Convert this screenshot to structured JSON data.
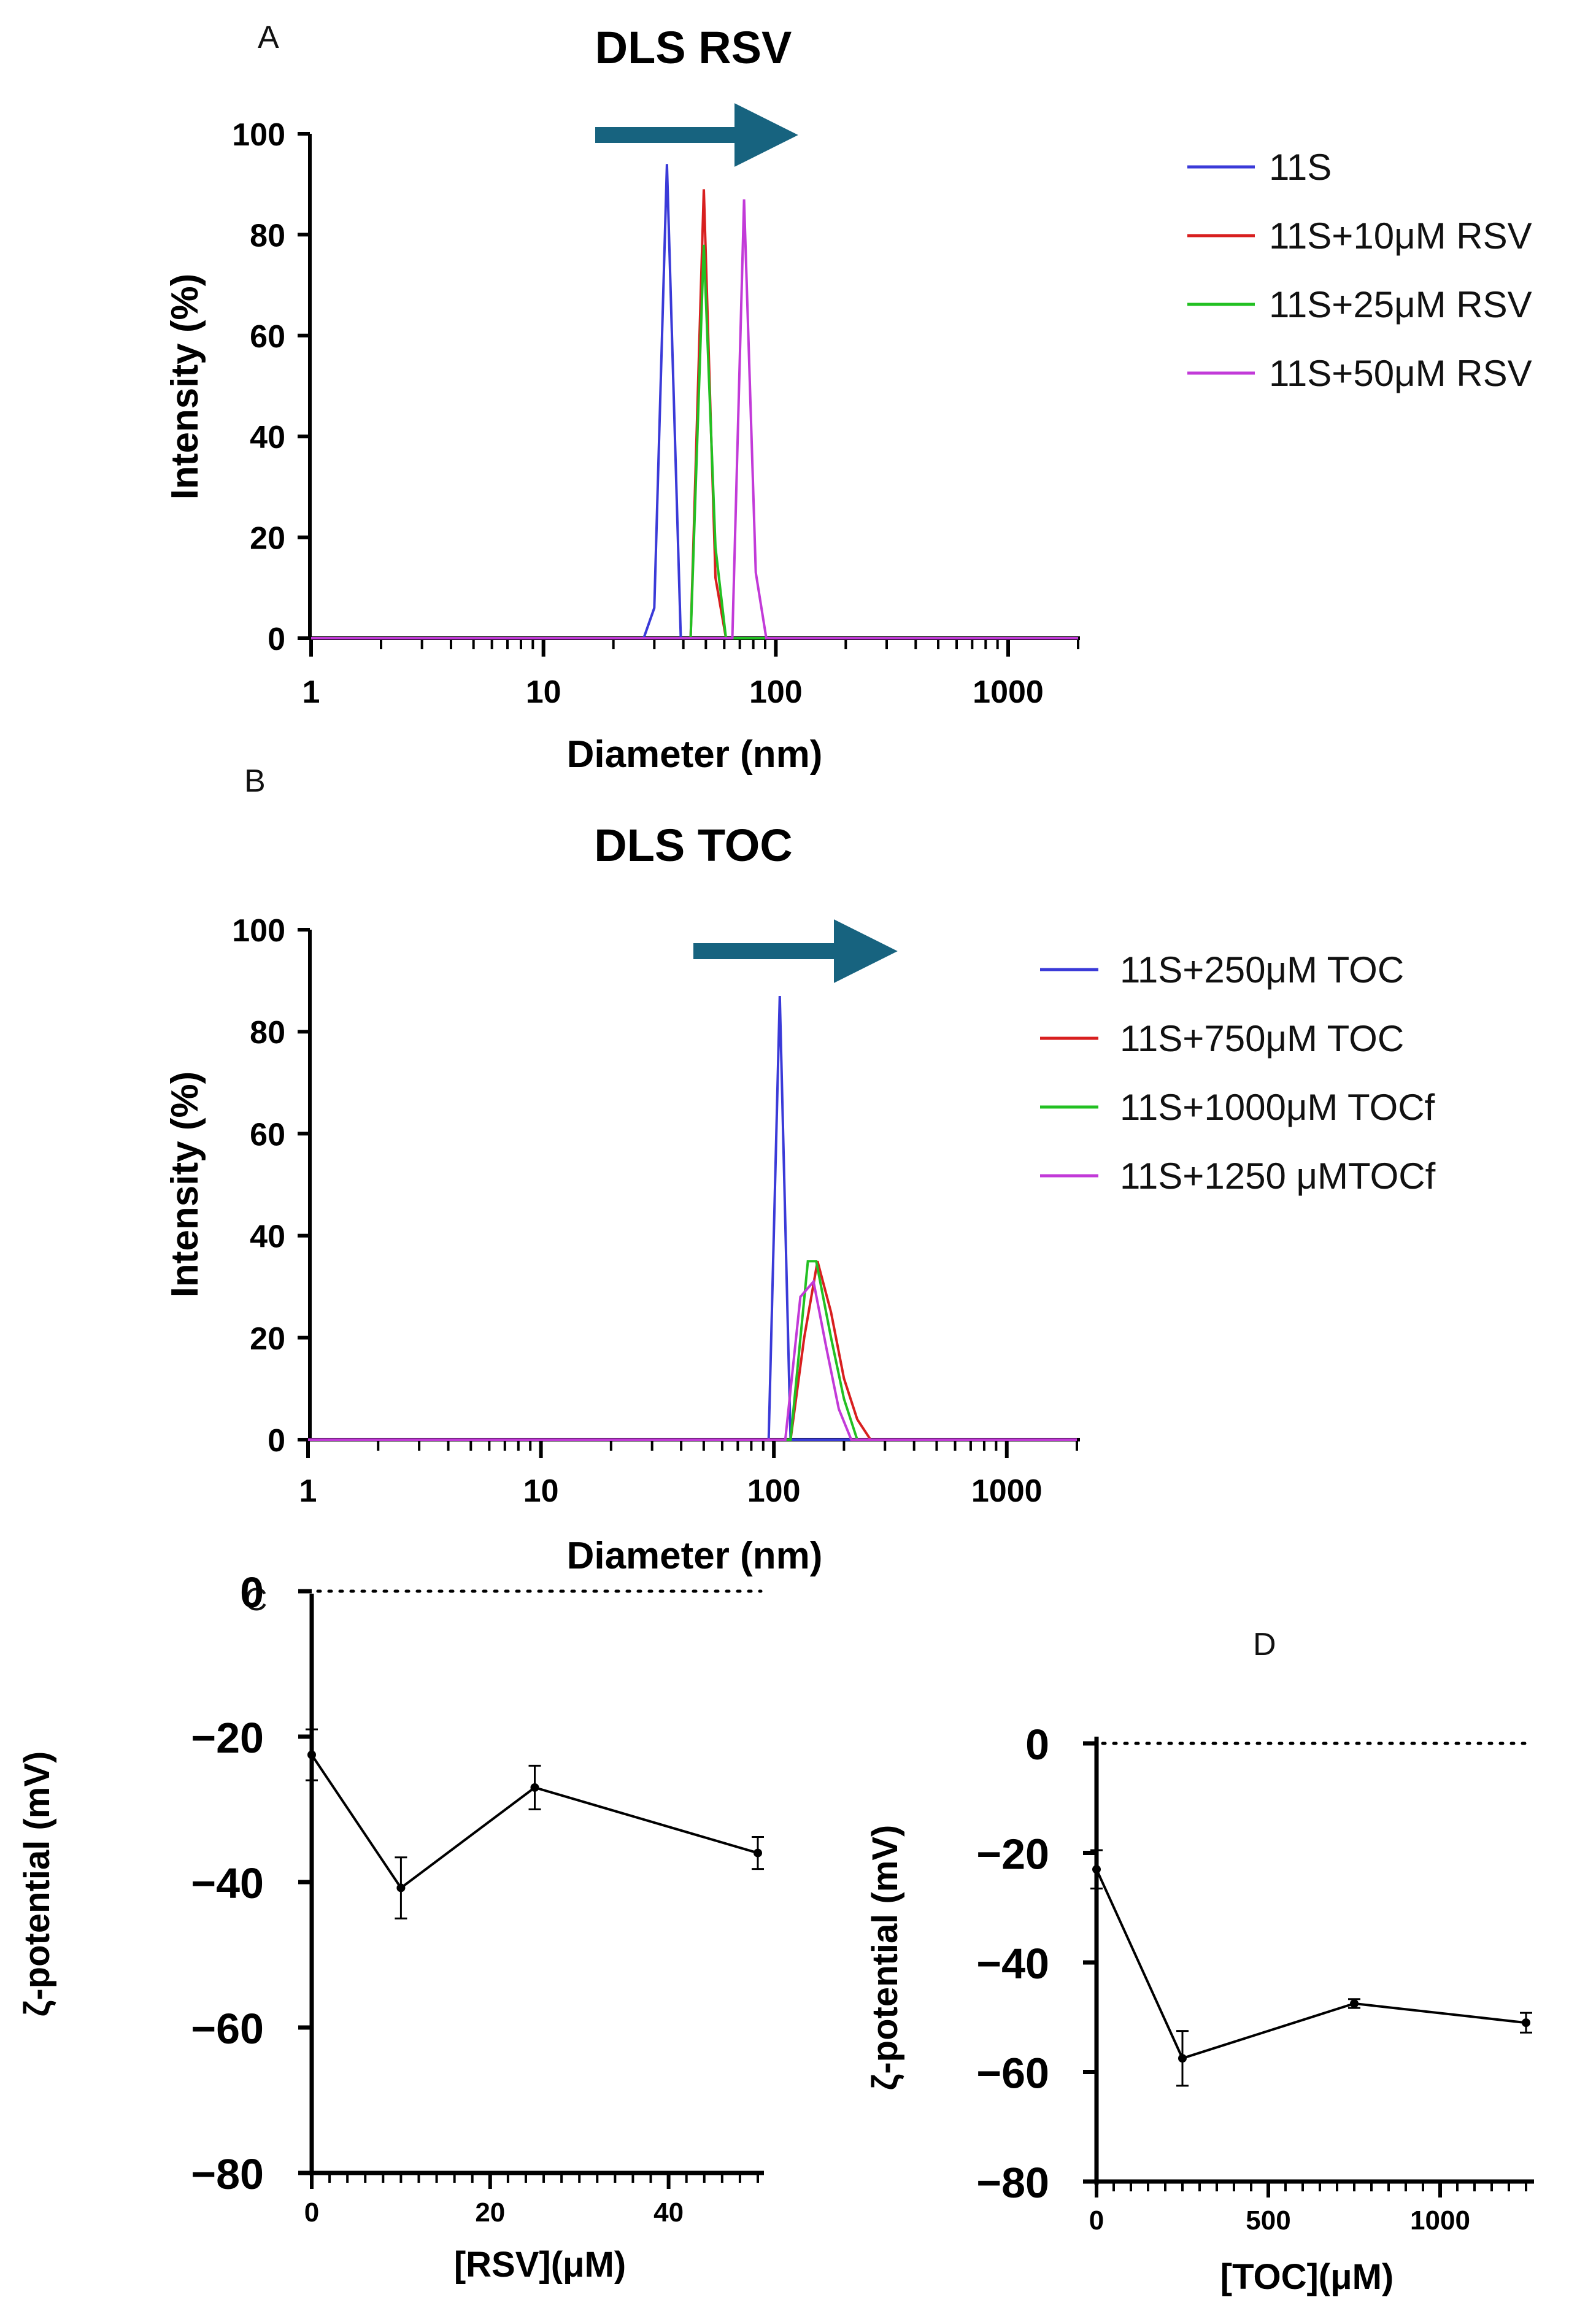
{
  "chart_data": [
    {
      "panel": "A",
      "type": "line",
      "title": "DLS RSV",
      "xlabel": "Diameter (nm)",
      "ylabel": "Intensity (%)",
      "xscale": "log",
      "xlim": [
        1,
        2000
      ],
      "ylim": [
        0,
        100
      ],
      "xticks": [
        1,
        10,
        100,
        1000
      ],
      "xtick_labels": [
        "1",
        "10",
        "100",
        "1000"
      ],
      "yticks": [
        0,
        20,
        40,
        60,
        80,
        100
      ],
      "ytick_labels": [
        "0",
        "20",
        "40",
        "60",
        "80",
        "100"
      ],
      "legend_position": "right",
      "annotation": "arrow pointing to larger diameter",
      "series": [
        {
          "name": "11S",
          "color": "#3a3ad8",
          "x": [
            1,
            27,
            30,
            34,
            39,
            2000
          ],
          "y": [
            0,
            0,
            6,
            94,
            0,
            0
          ]
        },
        {
          "name": "11S+10μM RSV",
          "color": "#d81f1f",
          "x": [
            1,
            43,
            49,
            55,
            61,
            2000
          ],
          "y": [
            0,
            0,
            89,
            12,
            0,
            0
          ]
        },
        {
          "name": "11S+25μM RSV",
          "color": "#22c022",
          "x": [
            1,
            43,
            49,
            55,
            61,
            2000
          ],
          "y": [
            0,
            0,
            78,
            18,
            0,
            0
          ]
        },
        {
          "name": "11S+50μM RSV",
          "color": "#c23ad8",
          "x": [
            1,
            65,
            73,
            82,
            91,
            2000
          ],
          "y": [
            0,
            0,
            87,
            13,
            0,
            0
          ]
        }
      ]
    },
    {
      "panel": "B",
      "type": "line",
      "title": "DLS TOC",
      "xlabel": "Diameter (nm)",
      "ylabel": "Intensity (%)",
      "xscale": "log",
      "xlim": [
        1,
        2000
      ],
      "ylim": [
        0,
        100
      ],
      "xticks": [
        1,
        10,
        100,
        1000
      ],
      "xtick_labels": [
        "1",
        "10",
        "100",
        "1000"
      ],
      "yticks": [
        0,
        20,
        40,
        60,
        80,
        100
      ],
      "ytick_labels": [
        "0",
        "20",
        "40",
        "60",
        "80",
        "100"
      ],
      "legend_position": "right",
      "annotation": "arrow pointing to larger diameter",
      "series": [
        {
          "name": "11S+250μM TOC",
          "color": "#3a3ad8",
          "x": [
            1,
            95,
            106,
            118,
            2000
          ],
          "y": [
            0,
            0,
            87,
            0,
            0
          ]
        },
        {
          "name": "11S+750μM TOC",
          "color": "#d81f1f",
          "x": [
            1,
            118,
            135,
            154,
            176,
            200,
            228,
            260,
            2000
          ],
          "y": [
            0,
            0,
            20,
            35,
            25,
            12,
            4,
            0,
            0
          ]
        },
        {
          "name": "11S+1000μM TOCf",
          "color": "#22c022",
          "x": [
            1,
            118,
            140,
            152,
            176,
            200,
            228,
            2000
          ],
          "y": [
            0,
            0,
            35,
            35,
            20,
            8,
            0,
            0
          ]
        },
        {
          "name": "11S+1250 μMTOCf",
          "color": "#c23ad8",
          "x": [
            1,
            112,
            130,
            148,
            168,
            190,
            215,
            2000
          ],
          "y": [
            0,
            0,
            28,
            31,
            18,
            6,
            0,
            0
          ]
        }
      ]
    },
    {
      "panel": "C",
      "type": "line",
      "xlabel": "[RSV](μM)",
      "ylabel": "ζ-potential (mV)",
      "xlim": [
        0,
        50
      ],
      "ylim": [
        -80,
        0
      ],
      "xticks": [
        0,
        20,
        40
      ],
      "xtick_labels": [
        "0",
        "20",
        "40"
      ],
      "yticks": [
        0,
        -20,
        -40,
        -60,
        -80
      ],
      "ytick_labels": [
        "0",
        "−20",
        "−40",
        "−60",
        "−80"
      ],
      "reference_line": {
        "y": 0,
        "style": "dotted"
      },
      "x": [
        0,
        10,
        25,
        50
      ],
      "values": [
        -22.5,
        -40.8,
        -27.0,
        -36.0
      ],
      "errors": [
        3.5,
        4.2,
        3.0,
        2.2
      ]
    },
    {
      "panel": "D",
      "type": "line",
      "xlabel": "[TOC](μM)",
      "ylabel": "ζ-potential (mV)",
      "xlim": [
        0,
        1250
      ],
      "ylim": [
        -80,
        0
      ],
      "xticks": [
        0,
        500,
        1000
      ],
      "xtick_labels": [
        "0",
        "500",
        "1000"
      ],
      "yticks": [
        0,
        -20,
        -40,
        -60,
        -80
      ],
      "ytick_labels": [
        "0",
        "−20",
        "−40",
        "−60",
        "−80"
      ],
      "reference_line": {
        "y": 0,
        "style": "dotted"
      },
      "x": [
        0,
        250,
        750,
        1250
      ],
      "values": [
        -23.0,
        -57.5,
        -47.5,
        -51.0
      ],
      "errors": [
        3.5,
        5.0,
        0.8,
        1.8
      ]
    }
  ]
}
